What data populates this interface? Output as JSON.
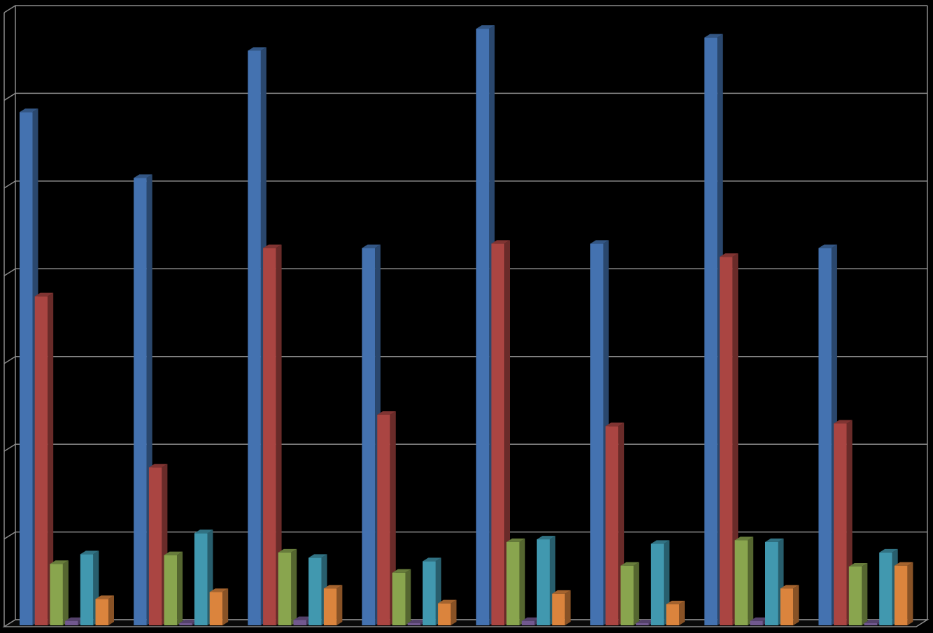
{
  "chart_data": {
    "type": "bar",
    "title": "",
    "xlabel": "",
    "ylabel": "",
    "categories": [
      "",
      "",
      "",
      "",
      "",
      "",
      "",
      ""
    ],
    "series": [
      {
        "color": "#4472B0",
        "values": [
          5.85,
          5.1,
          6.55,
          4.3,
          6.8,
          4.35,
          6.7,
          4.3
        ]
      },
      {
        "color": "#AA4542",
        "values": [
          3.75,
          1.8,
          4.3,
          2.4,
          4.35,
          2.27,
          4.2,
          2.3
        ]
      },
      {
        "color": "#89A54E",
        "values": [
          0.7,
          0.8,
          0.83,
          0.6,
          0.95,
          0.68,
          0.97,
          0.67
        ]
      },
      {
        "color": "#71588F",
        "values": [
          0.05,
          0.02,
          0.06,
          0.01,
          0.05,
          0.0,
          0.05,
          0.0
        ]
      },
      {
        "color": "#4198AF",
        "values": [
          0.81,
          1.05,
          0.77,
          0.73,
          0.98,
          0.93,
          0.95,
          0.83
        ]
      },
      {
        "color": "#DB843D",
        "values": [
          0.3,
          0.38,
          0.42,
          0.25,
          0.36,
          0.24,
          0.42,
          0.68
        ]
      }
    ],
    "ylim": [
      0,
      7
    ],
    "gridlines": true,
    "legend": "none",
    "style": "3d-clustered-column"
  }
}
